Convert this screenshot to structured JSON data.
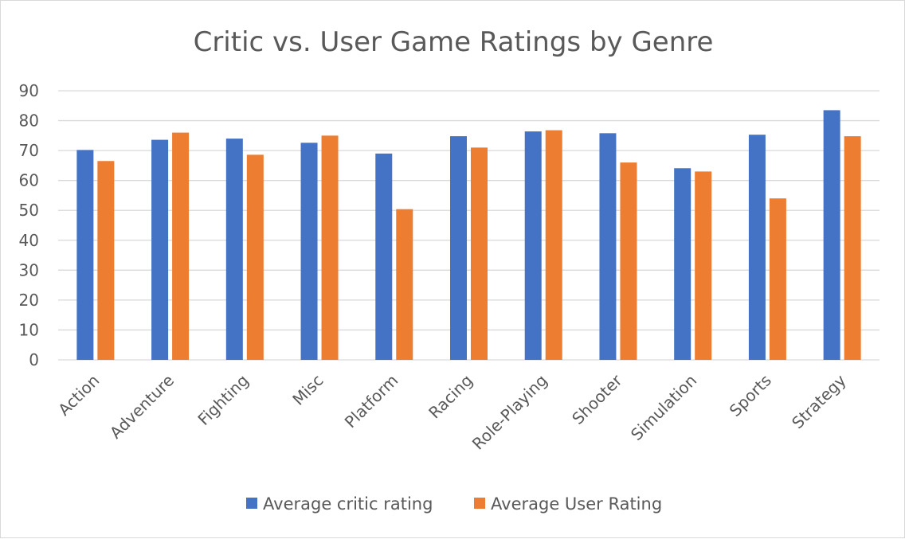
{
  "chart_data": {
    "type": "bar",
    "title": "Critic vs. User Game Ratings by Genre",
    "xlabel": "",
    "ylabel": "",
    "categories": [
      "Action",
      "Adventure",
      "Fighting",
      "Misc",
      "Platform",
      "Racing",
      "Role-Playing",
      "Shooter",
      "Simulation",
      "Sports",
      "Strategy"
    ],
    "series": [
      {
        "name": "Average critic rating",
        "color": "#4472C4",
        "values": [
          70.2,
          73.6,
          74.0,
          72.6,
          69.0,
          74.8,
          76.4,
          75.8,
          64.1,
          75.3,
          83.5
        ]
      },
      {
        "name": "Average User Rating",
        "color": "#ED7D31",
        "values": [
          66.5,
          76.0,
          68.6,
          75.0,
          50.4,
          71.0,
          76.8,
          66.0,
          63.0,
          54.0,
          74.8
        ]
      }
    ],
    "ylim": [
      0,
      90
    ],
    "yticks": [
      0,
      10,
      20,
      30,
      40,
      50,
      60,
      70,
      80,
      90
    ],
    "grid": true,
    "legend": "bottom"
  }
}
